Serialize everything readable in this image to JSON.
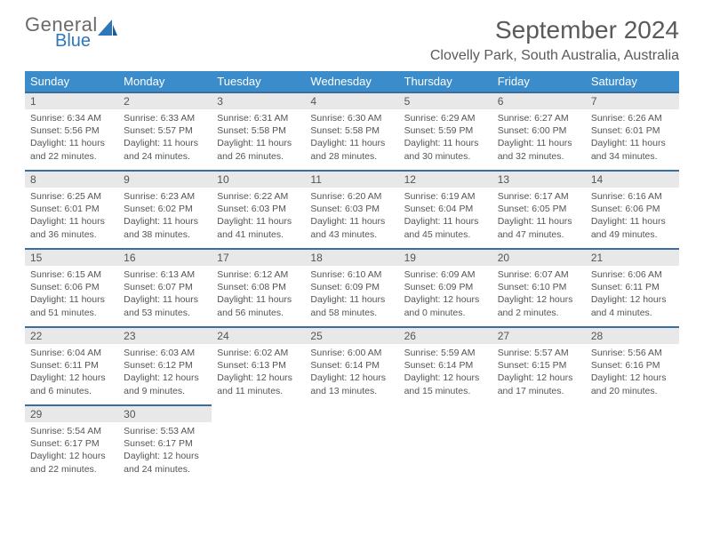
{
  "logo": {
    "general": "General",
    "blue": "Blue"
  },
  "title": "September 2024",
  "location": "Clovelly Park, South Australia, Australia",
  "colors": {
    "header_bg": "#3b8ccb",
    "header_text": "#ffffff",
    "row_border": "#3b6ea0",
    "daynum_bg": "#e8e8e8",
    "text": "#555555",
    "logo_gray": "#6a6a6a",
    "logo_blue": "#2e77b8"
  },
  "weekdays": [
    "Sunday",
    "Monday",
    "Tuesday",
    "Wednesday",
    "Thursday",
    "Friday",
    "Saturday"
  ],
  "days": [
    {
      "n": "1",
      "sr": "6:34 AM",
      "ss": "5:56 PM",
      "dl": "11 hours and 22 minutes."
    },
    {
      "n": "2",
      "sr": "6:33 AM",
      "ss": "5:57 PM",
      "dl": "11 hours and 24 minutes."
    },
    {
      "n": "3",
      "sr": "6:31 AM",
      "ss": "5:58 PM",
      "dl": "11 hours and 26 minutes."
    },
    {
      "n": "4",
      "sr": "6:30 AM",
      "ss": "5:58 PM",
      "dl": "11 hours and 28 minutes."
    },
    {
      "n": "5",
      "sr": "6:29 AM",
      "ss": "5:59 PM",
      "dl": "11 hours and 30 minutes."
    },
    {
      "n": "6",
      "sr": "6:27 AM",
      "ss": "6:00 PM",
      "dl": "11 hours and 32 minutes."
    },
    {
      "n": "7",
      "sr": "6:26 AM",
      "ss": "6:01 PM",
      "dl": "11 hours and 34 minutes."
    },
    {
      "n": "8",
      "sr": "6:25 AM",
      "ss": "6:01 PM",
      "dl": "11 hours and 36 minutes."
    },
    {
      "n": "9",
      "sr": "6:23 AM",
      "ss": "6:02 PM",
      "dl": "11 hours and 38 minutes."
    },
    {
      "n": "10",
      "sr": "6:22 AM",
      "ss": "6:03 PM",
      "dl": "11 hours and 41 minutes."
    },
    {
      "n": "11",
      "sr": "6:20 AM",
      "ss": "6:03 PM",
      "dl": "11 hours and 43 minutes."
    },
    {
      "n": "12",
      "sr": "6:19 AM",
      "ss": "6:04 PM",
      "dl": "11 hours and 45 minutes."
    },
    {
      "n": "13",
      "sr": "6:17 AM",
      "ss": "6:05 PM",
      "dl": "11 hours and 47 minutes."
    },
    {
      "n": "14",
      "sr": "6:16 AM",
      "ss": "6:06 PM",
      "dl": "11 hours and 49 minutes."
    },
    {
      "n": "15",
      "sr": "6:15 AM",
      "ss": "6:06 PM",
      "dl": "11 hours and 51 minutes."
    },
    {
      "n": "16",
      "sr": "6:13 AM",
      "ss": "6:07 PM",
      "dl": "11 hours and 53 minutes."
    },
    {
      "n": "17",
      "sr": "6:12 AM",
      "ss": "6:08 PM",
      "dl": "11 hours and 56 minutes."
    },
    {
      "n": "18",
      "sr": "6:10 AM",
      "ss": "6:09 PM",
      "dl": "11 hours and 58 minutes."
    },
    {
      "n": "19",
      "sr": "6:09 AM",
      "ss": "6:09 PM",
      "dl": "12 hours and 0 minutes."
    },
    {
      "n": "20",
      "sr": "6:07 AM",
      "ss": "6:10 PM",
      "dl": "12 hours and 2 minutes."
    },
    {
      "n": "21",
      "sr": "6:06 AM",
      "ss": "6:11 PM",
      "dl": "12 hours and 4 minutes."
    },
    {
      "n": "22",
      "sr": "6:04 AM",
      "ss": "6:11 PM",
      "dl": "12 hours and 6 minutes."
    },
    {
      "n": "23",
      "sr": "6:03 AM",
      "ss": "6:12 PM",
      "dl": "12 hours and 9 minutes."
    },
    {
      "n": "24",
      "sr": "6:02 AM",
      "ss": "6:13 PM",
      "dl": "12 hours and 11 minutes."
    },
    {
      "n": "25",
      "sr": "6:00 AM",
      "ss": "6:14 PM",
      "dl": "12 hours and 13 minutes."
    },
    {
      "n": "26",
      "sr": "5:59 AM",
      "ss": "6:14 PM",
      "dl": "12 hours and 15 minutes."
    },
    {
      "n": "27",
      "sr": "5:57 AM",
      "ss": "6:15 PM",
      "dl": "12 hours and 17 minutes."
    },
    {
      "n": "28",
      "sr": "5:56 AM",
      "ss": "6:16 PM",
      "dl": "12 hours and 20 minutes."
    },
    {
      "n": "29",
      "sr": "5:54 AM",
      "ss": "6:17 PM",
      "dl": "12 hours and 22 minutes."
    },
    {
      "n": "30",
      "sr": "5:53 AM",
      "ss": "6:17 PM",
      "dl": "12 hours and 24 minutes."
    }
  ],
  "labels": {
    "sunrise": "Sunrise:",
    "sunset": "Sunset:",
    "daylight": "Daylight:"
  },
  "layout": {
    "start_weekday": 0,
    "total_cells": 35,
    "cols": 7
  }
}
